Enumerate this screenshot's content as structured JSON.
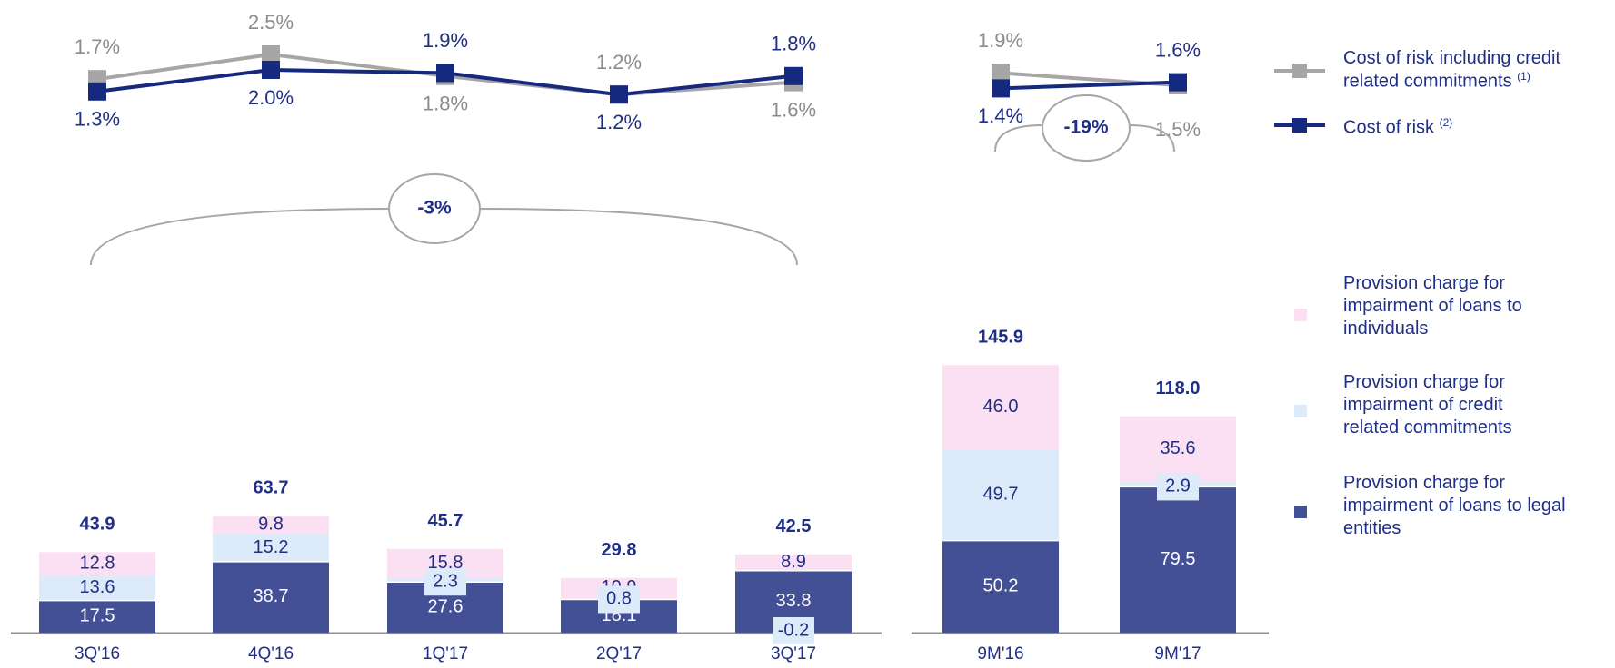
{
  "colors": {
    "legal": "#435096",
    "credit": "#ddeaf9",
    "individuals": "#fbdff3",
    "cor": "#15297f",
    "cor_incl": "#a6a6a6",
    "total": "#1f2f86",
    "axis": "#8f8f8f"
  },
  "chart_data": [
    {
      "type": "bar",
      "stacked": true,
      "categories": [
        "3Q'16",
        "4Q'16",
        "1Q'17",
        "2Q'17",
        "3Q'17"
      ],
      "series": [
        {
          "name": "Provision charge for impairment of loans to legal entities",
          "values": [
            17.5,
            38.7,
            27.6,
            18.1,
            33.8
          ]
        },
        {
          "name": "Provision charge for impairment of credit related commitments",
          "values": [
            13.6,
            15.2,
            2.3,
            0.8,
            -0.2
          ]
        },
        {
          "name": "Provision charge for impairment of loans to individuals",
          "values": [
            12.8,
            9.8,
            15.8,
            10.9,
            8.9
          ]
        }
      ],
      "totals": [
        "43.9",
        "63.7",
        "45.7",
        "29.8",
        "42.5"
      ],
      "value_labels": {
        "legal": [
          "17.5",
          "38.7",
          "27.6",
          "18.1",
          "33.8"
        ],
        "credit": [
          "13.6",
          "15.2",
          "2.3",
          "0.8",
          "-0.2"
        ],
        "individuals": [
          "12.8",
          "9.8",
          "15.8",
          "10.9",
          "8.9"
        ]
      },
      "change_badge": "-3%",
      "lines": [
        {
          "name": "Cost of risk including credit related commitments",
          "values": [
            1.7,
            2.5,
            1.8,
            1.2,
            1.6
          ],
          "labels": [
            "1.7%",
            "2.5%",
            "1.8%",
            "1.2%",
            "1.6%"
          ]
        },
        {
          "name": "Cost of risk",
          "values": [
            1.3,
            2.0,
            1.9,
            1.2,
            1.8
          ],
          "labels": [
            "1.3%",
            "2.0%",
            "1.9%",
            "1.2%",
            "1.8%"
          ]
        }
      ]
    },
    {
      "type": "bar",
      "stacked": true,
      "categories": [
        "9M'16",
        "9M'17"
      ],
      "series": [
        {
          "name": "Provision charge for impairment of loans to legal entities",
          "values": [
            50.2,
            79.5
          ]
        },
        {
          "name": "Provision charge for impairment of credit related commitments",
          "values": [
            49.7,
            2.9
          ]
        },
        {
          "name": "Provision charge for impairment of loans to individuals",
          "values": [
            46.0,
            35.6
          ]
        }
      ],
      "totals": [
        "145.9",
        "118.0"
      ],
      "value_labels": {
        "legal": [
          "50.2",
          "79.5"
        ],
        "credit": [
          "49.7",
          "2.9"
        ],
        "individuals": [
          "46.0",
          "35.6"
        ]
      },
      "change_badge": "-19%",
      "lines": [
        {
          "name": "Cost of risk including credit related commitments",
          "values": [
            1.9,
            1.5
          ],
          "labels": [
            "1.9%",
            "1.5%"
          ]
        },
        {
          "name": "Cost of risk",
          "values": [
            1.4,
            1.6
          ],
          "labels": [
            "1.4%",
            "1.6%"
          ]
        }
      ]
    }
  ],
  "legend": {
    "cor_incl": "Cost of risk including credit related commitments",
    "cor_incl_note": "(1)",
    "cor": "Cost of risk",
    "cor_note": "(2)",
    "individuals": "Provision charge for impairment of loans to individuals",
    "credit": "Provision charge for impairment of credit related commitments",
    "legal": "Provision charge for impairment of loans to legal entities"
  }
}
